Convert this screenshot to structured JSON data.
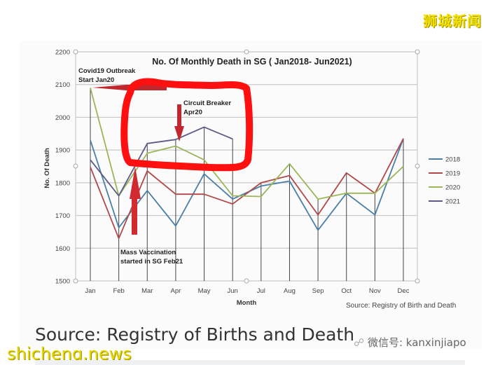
{
  "watermark": {
    "brand_cn": "狮城新闻",
    "brand_en": "shicheng.news",
    "wechat_id": "微信号: kanxinjiapo"
  },
  "caption": "Source: Registry of Births and Death",
  "chart_data": {
    "type": "line",
    "title": "No. Of Monthly Death in SG ( Jan2018- Jun2021)",
    "xlabel": "Month",
    "ylabel": "No. Of Death",
    "ylim": [
      1500,
      2200
    ],
    "yticks": [
      1500,
      1600,
      1700,
      1800,
      1900,
      2000,
      2100,
      2200
    ],
    "grid": true,
    "legend_position": "right",
    "categories": [
      "Jan",
      "Feb",
      "Mar",
      "Apr",
      "May",
      "Jun",
      "Jul",
      "Aug",
      "Sep",
      "Oct",
      "Nov",
      "Dec"
    ],
    "series": [
      {
        "name": "2018",
        "color": "#4a7fa8",
        "values": [
          1930,
          1663,
          1776,
          1668,
          1827,
          1750,
          1790,
          1805,
          1655,
          1768,
          1702,
          1935
        ]
      },
      {
        "name": "2019",
        "color": "#b0484a",
        "values": [
          1848,
          1630,
          1836,
          1765,
          1765,
          1735,
          1800,
          1822,
          1702,
          1830,
          1768,
          1935
        ]
      },
      {
        "name": "2020",
        "color": "#9bb659",
        "values": [
          2090,
          1760,
          1890,
          1912,
          1870,
          1760,
          1758,
          1858,
          1750,
          1768,
          1768,
          1850
        ]
      },
      {
        "name": "2021",
        "color": "#5e5a85",
        "values": [
          1870,
          1760,
          1920,
          1932,
          1970,
          1934,
          null,
          null,
          null,
          null,
          null,
          null
        ]
      }
    ],
    "annotations": [
      {
        "text_line1": "Covid19 Outbreak",
        "text_line2": "Start Jan20",
        "target": "Jan 2020"
      },
      {
        "text_line1": "Circuit Breaker",
        "text_line2": "Apr20",
        "target": "Apr 2020"
      },
      {
        "text_line1": "Mass Vaccination",
        "text_line2": "started in SG Feb21",
        "target": "Feb 2021"
      }
    ],
    "source_note": "Source: Registry of Birth and Death",
    "highlight": "red hand-drawn box around Mar–Jun 2021 values"
  }
}
